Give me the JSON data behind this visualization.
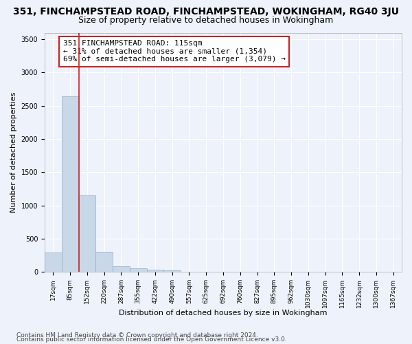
{
  "title_line1": "351, FINCHAMPSTEAD ROAD, FINCHAMPSTEAD, WOKINGHAM, RG40 3JU",
  "title_line2": "Size of property relative to detached houses in Wokingham",
  "xlabel": "Distribution of detached houses by size in Wokingham",
  "ylabel": "Number of detached properties",
  "bar_values": [
    290,
    2640,
    1150,
    300,
    90,
    55,
    35,
    25,
    0,
    0,
    0,
    0,
    0,
    0,
    0,
    0,
    0,
    0,
    0,
    0,
    0
  ],
  "bar_labels": [
    "17sqm",
    "85sqm",
    "152sqm",
    "220sqm",
    "287sqm",
    "355sqm",
    "422sqm",
    "490sqm",
    "557sqm",
    "625sqm",
    "692sqm",
    "760sqm",
    "827sqm",
    "895sqm",
    "962sqm",
    "1030sqm",
    "1097sqm",
    "1165sqm",
    "1232sqm",
    "1300sqm",
    "1367sqm"
  ],
  "bar_color": "#c8d8e8",
  "bar_edge_color": "#8ab0c8",
  "vline_x": 1.5,
  "vline_color": "#cc2222",
  "annotation_box_text": "351 FINCHAMPSTEAD ROAD: 115sqm\n← 31% of detached houses are smaller (1,354)\n69% of semi-detached houses are larger (3,079) →",
  "ylim": [
    0,
    3600
  ],
  "yticks": [
    0,
    500,
    1000,
    1500,
    2000,
    2500,
    3000,
    3500
  ],
  "footer_line1": "Contains HM Land Registry data © Crown copyright and database right 2024.",
  "footer_line2": "Contains public sector information licensed under the Open Government Licence v3.0.",
  "background_color": "#eef2fa",
  "grid_color": "#ffffff",
  "title1_fontsize": 10,
  "title2_fontsize": 9,
  "annot_fontsize": 8,
  "footer_fontsize": 6.5
}
